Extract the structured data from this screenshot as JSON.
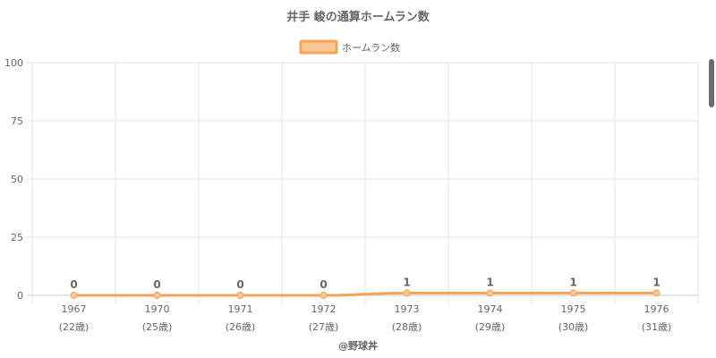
{
  "chart_data": {
    "type": "line",
    "title": "井手 峻の通算ホームラン数",
    "categories": [
      "1967",
      "1970",
      "1971",
      "1972",
      "1973",
      "1974",
      "1975",
      "1976"
    ],
    "category_sublabels": [
      "(22歳)",
      "(25歳)",
      "(26歳)",
      "(27歳)",
      "(28歳)",
      "(29歳)",
      "(30歳)",
      "(31歳)"
    ],
    "series": [
      {
        "name": "ホームラン数",
        "values": [
          0,
          0,
          0,
          0,
          1,
          1,
          1,
          1
        ]
      }
    ],
    "ylim": [
      0,
      100
    ],
    "yticks": [
      "0",
      "25",
      "50",
      "75",
      "100"
    ],
    "grid": true,
    "legend": "top-center",
    "colors": {
      "line": "#f5a356",
      "fill": "#fac796",
      "grid": "#e6e6e6",
      "text": "#666666"
    }
  },
  "watermark": "@野球丼"
}
